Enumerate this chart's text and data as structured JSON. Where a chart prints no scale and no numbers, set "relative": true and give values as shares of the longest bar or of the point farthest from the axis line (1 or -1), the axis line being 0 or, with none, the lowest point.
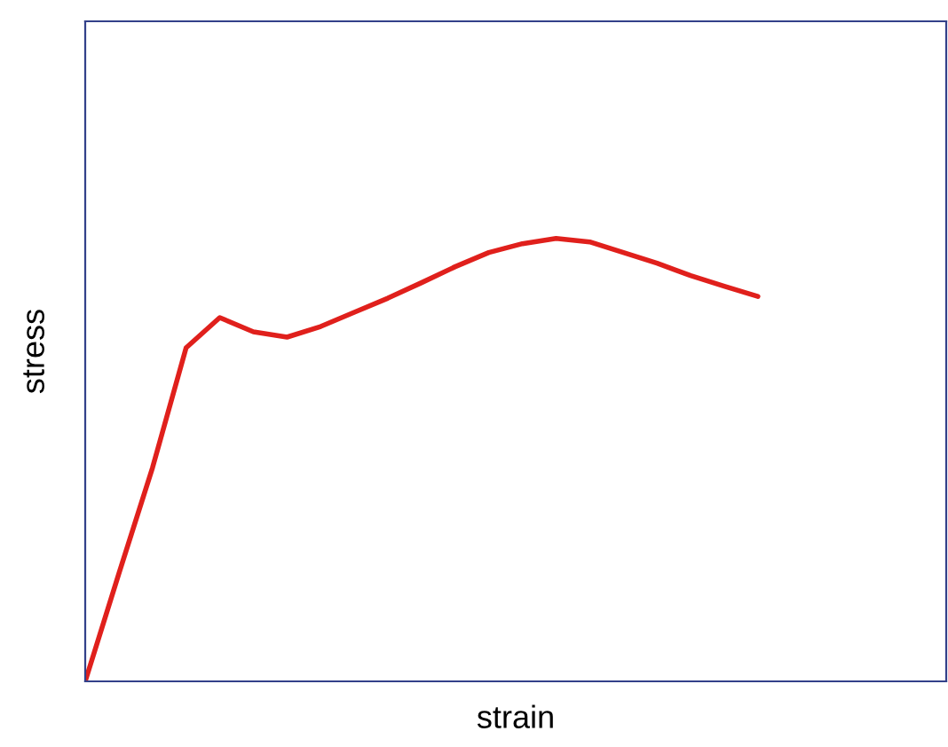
{
  "chart_data": {
    "type": "line",
    "relative": true,
    "xlabel": "strain",
    "ylabel": "stress",
    "categories": [
      null,
      null,
      null,
      null,
      null,
      null,
      null,
      null,
      null,
      null,
      null,
      null,
      null,
      null,
      null,
      null,
      null,
      null,
      null,
      null,
      null
    ],
    "series": [
      {
        "color": "#e0201c",
        "values": [
          0,
          0.243,
          0.482,
          0.753,
          0.821,
          0.789,
          0.777,
          0.801,
          0.833,
          0.865,
          0.9,
          0.936,
          0.968,
          0.988,
          1,
          0.992,
          0.968,
          0.944,
          0.916,
          0.892,
          0.869
        ]
      }
    ],
    "grid": false,
    "legend": false,
    "marker": "none",
    "line_style": "solid"
  }
}
